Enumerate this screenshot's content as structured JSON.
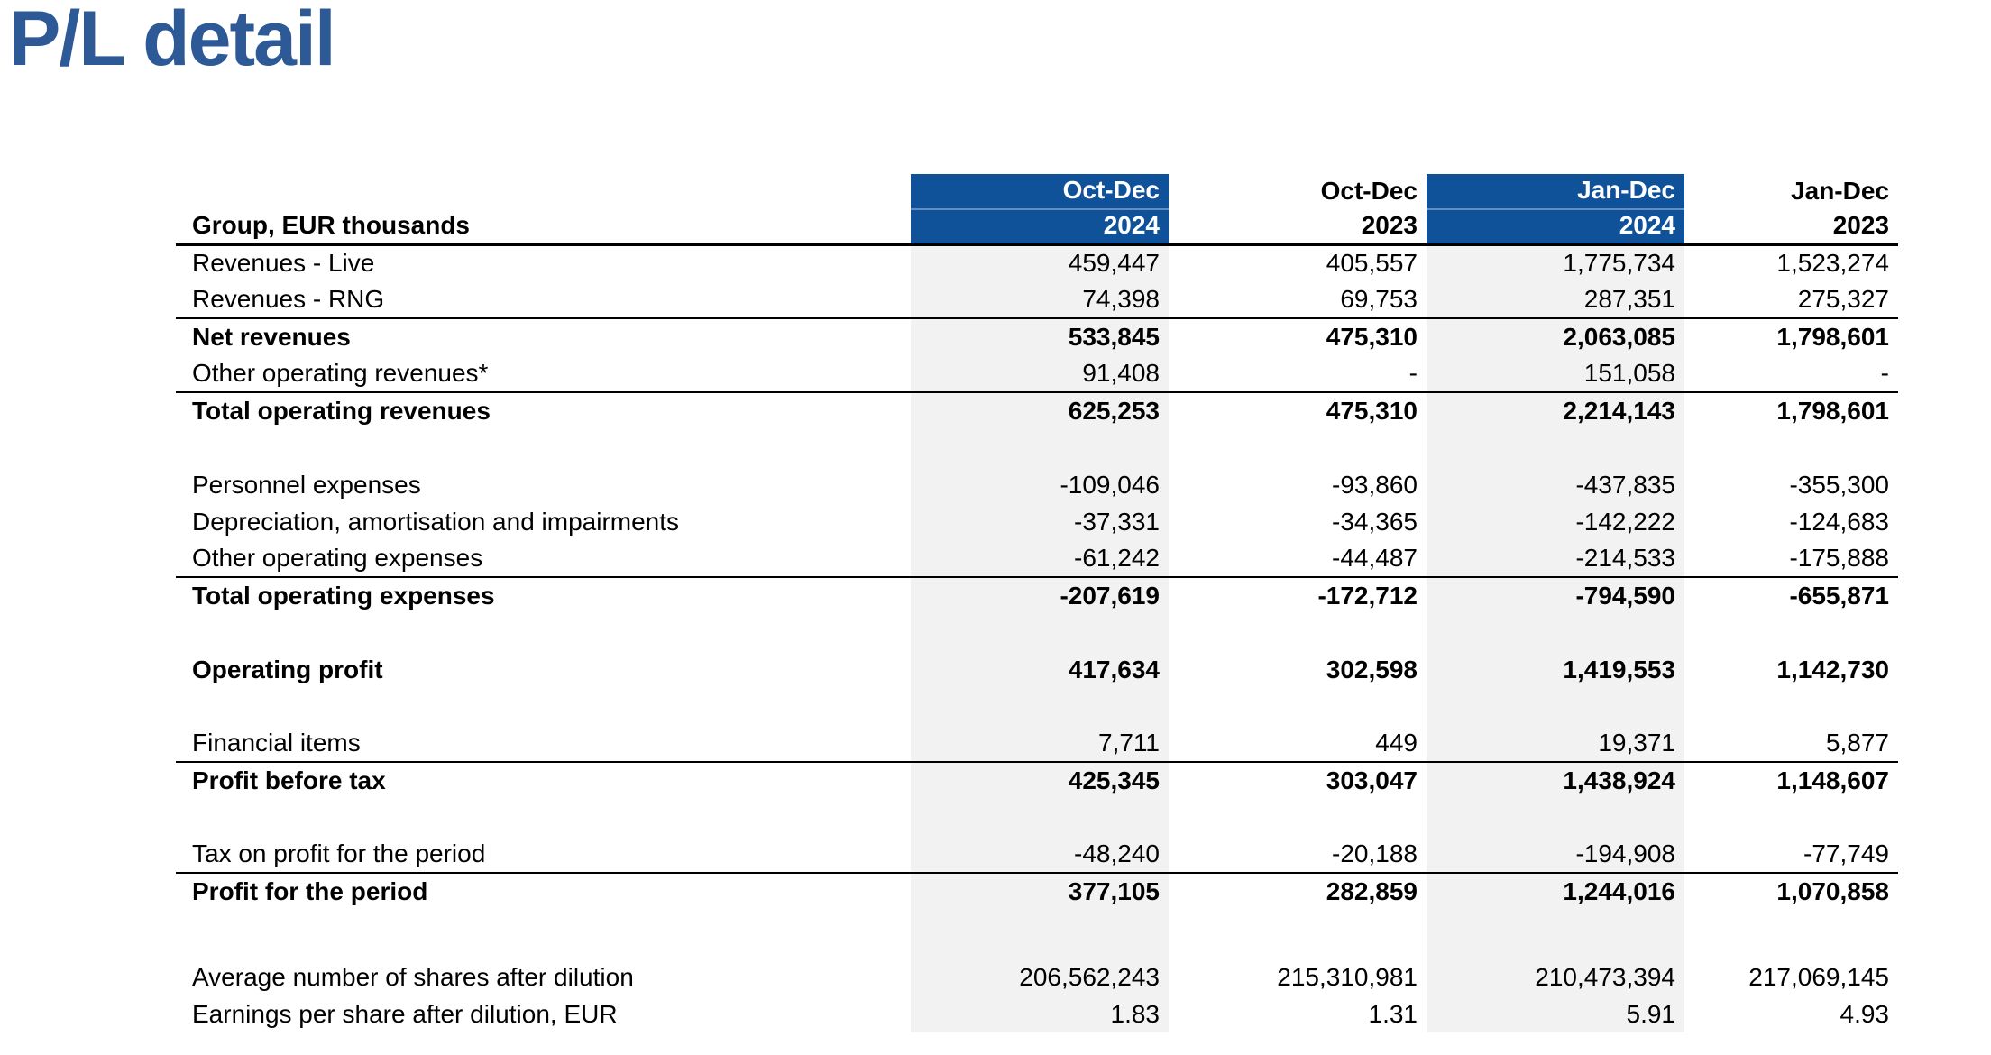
{
  "page_title": "P/L detail",
  "colors": {
    "title_text": "#2D5A96",
    "header_highlight_fill": "#10529A",
    "header_highlight_text": "#FFFFFF",
    "column_band_fill": "#F2F2F2",
    "body_text": "#000000",
    "rule_line": "#000000"
  },
  "table": {
    "corner_label": "Group, EUR thousands",
    "columns": [
      {
        "period": "Oct-Dec",
        "year": "2024",
        "highlighted": true
      },
      {
        "period": "Oct-Dec",
        "year": "2023",
        "highlighted": false
      },
      {
        "period": "Jan-Dec",
        "year": "2024",
        "highlighted": true
      },
      {
        "period": "Jan-Dec",
        "year": "2023",
        "highlighted": false
      }
    ],
    "rows": [
      {
        "label": "Revenues - Live",
        "values": [
          "459,447",
          "405,557",
          "1,775,734",
          "1,523,274"
        ],
        "bold": false,
        "rule_below": false
      },
      {
        "label": "Revenues - RNG",
        "values": [
          "74,398",
          "69,753",
          "287,351",
          "275,327"
        ],
        "bold": false,
        "rule_below": true
      },
      {
        "label": "Net revenues",
        "values": [
          "533,845",
          "475,310",
          "2,063,085",
          "1,798,601"
        ],
        "bold": true,
        "rule_below": false
      },
      {
        "label": "Other operating revenues*",
        "values": [
          "91,408",
          "-",
          "151,058",
          "-"
        ],
        "bold": false,
        "rule_below": true
      },
      {
        "label": "Total operating revenues",
        "values": [
          "625,253",
          "475,310",
          "2,214,143",
          "1,798,601"
        ],
        "bold": true,
        "rule_below": false
      },
      {
        "blank": true
      },
      {
        "label": "Personnel expenses",
        "values": [
          "-109,046",
          "-93,860",
          "-437,835",
          "-355,300"
        ],
        "bold": false,
        "rule_below": false
      },
      {
        "label": "Depreciation, amortisation and impairments",
        "values": [
          "-37,331",
          "-34,365",
          "-142,222",
          "-124,683"
        ],
        "bold": false,
        "rule_below": false
      },
      {
        "label": "Other operating expenses",
        "values": [
          "-61,242",
          "-44,487",
          "-214,533",
          "-175,888"
        ],
        "bold": false,
        "rule_below": true
      },
      {
        "label": "Total operating expenses",
        "values": [
          "-207,619",
          "-172,712",
          "-794,590",
          "-655,871"
        ],
        "bold": true,
        "rule_below": false
      },
      {
        "blank": true
      },
      {
        "label": "Operating profit",
        "values": [
          "417,634",
          "302,598",
          "1,419,553",
          "1,142,730"
        ],
        "bold": true,
        "rule_below": false
      },
      {
        "blank": true
      },
      {
        "label": "Financial items",
        "values": [
          "7,711",
          "449",
          "19,371",
          "5,877"
        ],
        "bold": false,
        "rule_below": true
      },
      {
        "label": "Profit before tax",
        "values": [
          "425,345",
          "303,047",
          "1,438,924",
          "1,148,607"
        ],
        "bold": true,
        "rule_below": false
      },
      {
        "blank": true
      },
      {
        "label": "Tax on profit for the period",
        "values": [
          "-48,240",
          "-20,188",
          "-194,908",
          "-77,749"
        ],
        "bold": false,
        "rule_below": true
      },
      {
        "label": "Profit for the period",
        "values": [
          "377,105",
          "282,859",
          "1,244,016",
          "1,070,858"
        ],
        "bold": true,
        "rule_below": false
      },
      {
        "blank": true,
        "tall": true
      },
      {
        "label": "Average number of shares after dilution",
        "values": [
          "206,562,243",
          "215,310,981",
          "210,473,394",
          "217,069,145"
        ],
        "bold": false,
        "rule_below": false
      },
      {
        "label": "Earnings per share after dilution, EUR",
        "values": [
          "1.83",
          "1.31",
          "5.91",
          "4.93"
        ],
        "bold": false,
        "rule_below": false
      }
    ]
  }
}
